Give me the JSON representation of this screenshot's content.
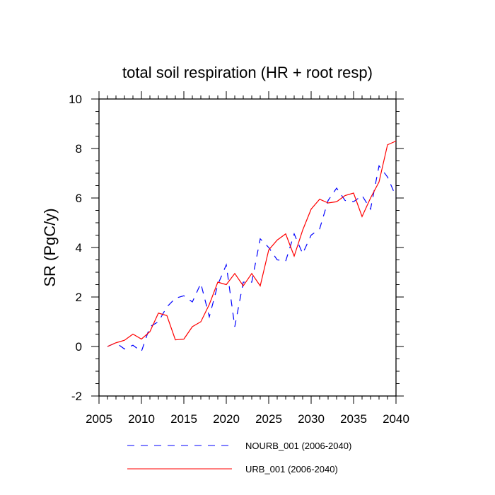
{
  "chart_data": {
    "type": "line",
    "title": "total soil respiration (HR + root resp)",
    "xlabel": "",
    "ylabel": "SR  (PgC/y)",
    "xlim": [
      2005,
      2040
    ],
    "ylim": [
      -2,
      10
    ],
    "x_ticks": [
      2005,
      2010,
      2015,
      2020,
      2025,
      2030,
      2035,
      2040
    ],
    "y_ticks": [
      -2,
      0,
      2,
      4,
      6,
      8,
      10
    ],
    "x_tick_labels": [
      "2005",
      "2010",
      "2015",
      "2020",
      "2025",
      "2030",
      "2035",
      "2040"
    ],
    "y_tick_labels": [
      "-2",
      "0",
      "2",
      "4",
      "6",
      "8",
      "10"
    ],
    "grid": false,
    "legend_position": "bottom",
    "x": [
      2006,
      2007,
      2008,
      2009,
      2010,
      2011,
      2012,
      2013,
      2014,
      2015,
      2016,
      2017,
      2018,
      2019,
      2020,
      2021,
      2022,
      2023,
      2024,
      2025,
      2026,
      2027,
      2028,
      2029,
      2030,
      2031,
      2032,
      2033,
      2034,
      2035,
      2036,
      2037,
      2038,
      2039,
      2040
    ],
    "series": [
      {
        "name": "NOURB_001 (2006-2040)",
        "color": "#0000ff",
        "style": "dashed",
        "values": [
          0.0,
          0.15,
          -0.1,
          0.05,
          -0.2,
          0.8,
          1.0,
          1.6,
          1.95,
          2.05,
          1.8,
          2.55,
          1.2,
          2.5,
          3.3,
          0.8,
          2.6,
          2.6,
          4.35,
          4.0,
          3.5,
          3.45,
          4.55,
          3.75,
          4.5,
          4.75,
          5.9,
          6.4,
          5.9,
          5.85,
          6.1,
          5.55,
          7.3,
          6.85,
          6.05
        ]
      },
      {
        "name": "URB_001 (2006-2040)",
        "color": "#ff0000",
        "style": "solid",
        "values": [
          0.0,
          0.15,
          0.25,
          0.5,
          0.3,
          0.6,
          1.35,
          1.25,
          0.27,
          0.3,
          0.8,
          1.0,
          1.7,
          2.6,
          2.5,
          2.95,
          2.45,
          2.95,
          2.45,
          3.9,
          4.3,
          4.55,
          3.65,
          4.7,
          5.55,
          5.95,
          5.8,
          5.85,
          6.1,
          6.2,
          5.25,
          6.0,
          6.65,
          8.15,
          8.3
        ]
      }
    ]
  }
}
